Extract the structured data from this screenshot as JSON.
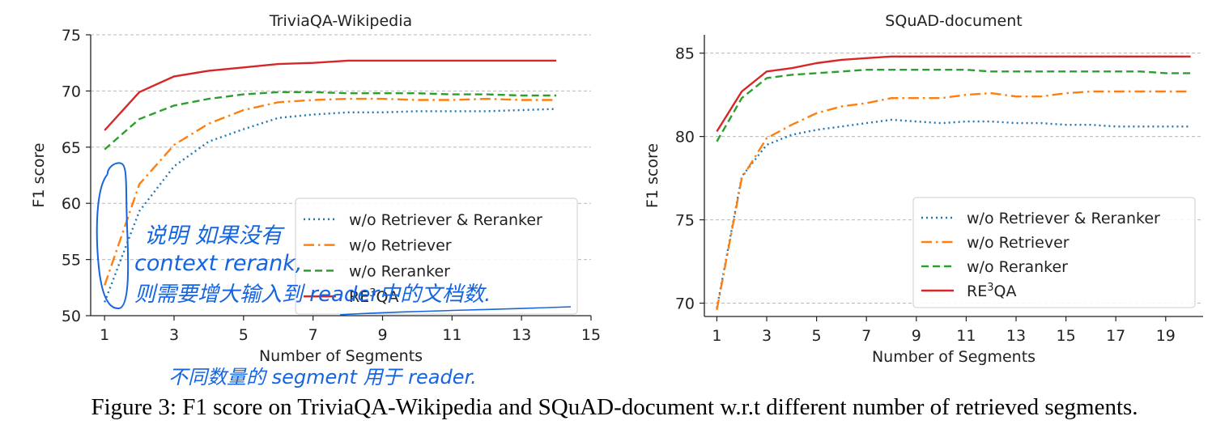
{
  "caption": "Figure 3: F1 score on TriviaQA-Wikipedia and SQuAD-document w.r.t different number of retrieved segments.",
  "colors": {
    "w/o Retriever & Reranker": "#1f77b4",
    "w/o Retriever": "#ff7f0e",
    "w/o Reranker": "#2ca02c",
    "RE3QA": "#d62728",
    "ink": "#1565e0"
  },
  "annotations": [
    "说明 如果没有",
    "context rerank,",
    "则需要增大输入到 reader中的文档数.",
    "不同数量的 segment 用于 reader."
  ],
  "chart_data": [
    {
      "type": "line",
      "title": "TriviaQA-Wikipedia",
      "xlabel": "Number of Segments",
      "ylabel": "F1 score",
      "xlim": [
        0.6,
        15
      ],
      "ylim": [
        50,
        75
      ],
      "xticks": [
        1,
        3,
        5,
        7,
        9,
        11,
        13,
        15
      ],
      "yticks": [
        50,
        55,
        60,
        65,
        70,
        75
      ],
      "grid": "horizontal-dashed",
      "legend_position": "lower-right",
      "x": [
        1,
        2,
        3,
        4,
        5,
        6,
        7,
        8,
        9,
        10,
        11,
        12,
        13,
        14
      ],
      "series": [
        {
          "name": "w/o Retriever & Reranker",
          "style": "dotted",
          "values": [
            51.2,
            59.3,
            63.3,
            65.5,
            66.6,
            67.6,
            67.9,
            68.1,
            68.1,
            68.2,
            68.2,
            68.2,
            68.3,
            68.4
          ]
        },
        {
          "name": "w/o Retriever",
          "style": "dashdot",
          "values": [
            52.7,
            61.7,
            65.2,
            67.1,
            68.3,
            69.0,
            69.2,
            69.3,
            69.3,
            69.2,
            69.2,
            69.3,
            69.2,
            69.2
          ]
        },
        {
          "name": "w/o Reranker",
          "style": "dashed",
          "values": [
            64.8,
            67.5,
            68.7,
            69.3,
            69.7,
            69.9,
            69.9,
            69.8,
            69.8,
            69.8,
            69.7,
            69.7,
            69.6,
            69.6
          ]
        },
        {
          "name": "RE3QA",
          "style": "solid",
          "values": [
            66.5,
            69.9,
            71.3,
            71.8,
            72.1,
            72.4,
            72.5,
            72.7,
            72.7,
            72.7,
            72.7,
            72.7,
            72.7,
            72.7
          ]
        }
      ]
    },
    {
      "type": "line",
      "title": "SQuAD-document",
      "xlabel": "Number of Segments",
      "ylabel": "F1 score",
      "xlim": [
        0.5,
        20.5
      ],
      "ylim": [
        69.2,
        86.1
      ],
      "xticks": [
        1,
        3,
        5,
        7,
        9,
        11,
        13,
        15,
        17,
        19
      ],
      "yticks": [
        70,
        75,
        80,
        85
      ],
      "grid": "horizontal-dashed",
      "legend_position": "lower-right",
      "x": [
        1,
        2,
        3,
        4,
        5,
        6,
        7,
        8,
        9,
        10,
        11,
        12,
        13,
        14,
        15,
        16,
        17,
        18,
        19,
        20
      ],
      "series": [
        {
          "name": "w/o Retriever & Reranker",
          "style": "dotted",
          "values": [
            69.7,
            77.6,
            79.5,
            80.1,
            80.4,
            80.6,
            80.8,
            81.0,
            80.9,
            80.8,
            80.9,
            80.9,
            80.8,
            80.8,
            80.7,
            80.7,
            80.6,
            80.6,
            80.6,
            80.6
          ]
        },
        {
          "name": "w/o Retriever",
          "style": "dashdot",
          "values": [
            69.6,
            77.5,
            79.9,
            80.7,
            81.4,
            81.8,
            82.0,
            82.3,
            82.3,
            82.3,
            82.5,
            82.6,
            82.4,
            82.4,
            82.6,
            82.7,
            82.7,
            82.7,
            82.7,
            82.7
          ]
        },
        {
          "name": "w/o Reranker",
          "style": "dashed",
          "values": [
            79.7,
            82.3,
            83.5,
            83.7,
            83.8,
            83.9,
            84.0,
            84.0,
            84.0,
            84.0,
            84.0,
            83.9,
            83.9,
            83.9,
            83.9,
            83.9,
            83.9,
            83.9,
            83.8,
            83.8
          ]
        },
        {
          "name": "RE3QA",
          "style": "solid",
          "values": [
            80.3,
            82.7,
            83.9,
            84.1,
            84.4,
            84.6,
            84.7,
            84.8,
            84.8,
            84.8,
            84.8,
            84.8,
            84.8,
            84.8,
            84.8,
            84.8,
            84.8,
            84.8,
            84.8,
            84.8
          ]
        }
      ]
    }
  ]
}
